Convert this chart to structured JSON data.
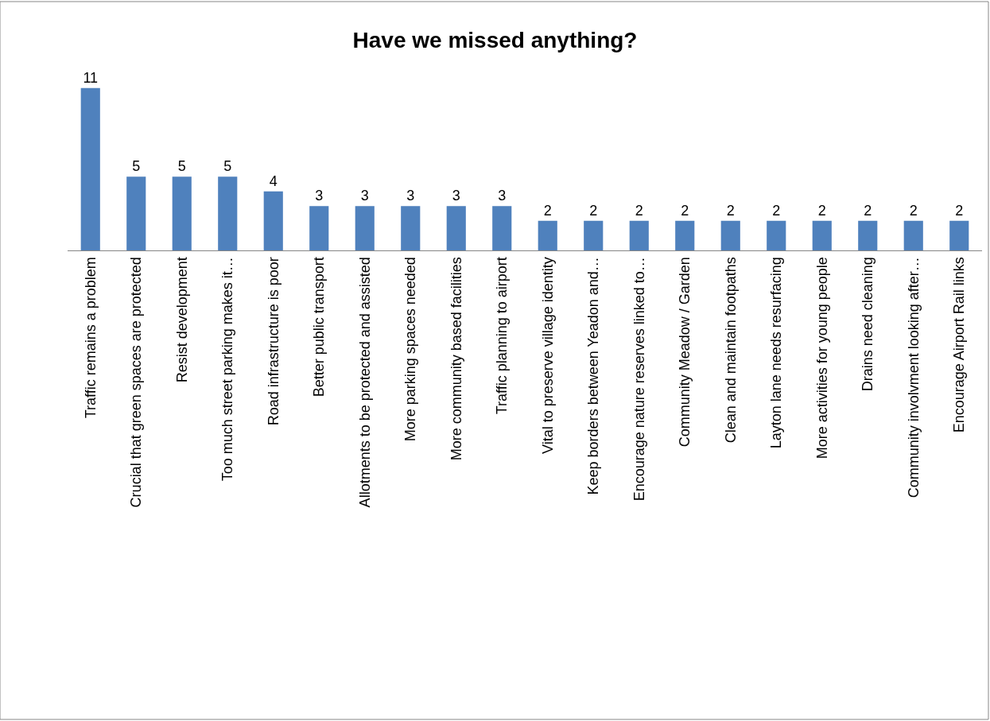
{
  "chart_data": {
    "type": "bar",
    "title": "Have we missed anything?",
    "categories": [
      "Traffic remains a problem",
      "Crucial that green spaces are protected",
      "Resist development",
      "Too much street parking makes it…",
      "Road infrastructure is poor",
      "Better public transport",
      "Allotments to be protected and assisted",
      "More parking spaces needed",
      "More community based facilities",
      "Traffic planning to airport",
      "Vital to preserve village identity",
      "Keep borders between Yeadon and…",
      "Encourage nature reserves linked to…",
      "Community Meadow / Garden",
      "Clean and maintain footpaths",
      "Layton lane needs resurfacing",
      "More activities for young people",
      "Drains need cleaning",
      "Community involvment looking after…",
      "Encourage Airport Rail links"
    ],
    "values": [
      11,
      5,
      5,
      5,
      4,
      3,
      3,
      3,
      3,
      3,
      2,
      2,
      2,
      2,
      2,
      2,
      2,
      2,
      2,
      2
    ],
    "color": "#4f81bd",
    "data_labels": true
  }
}
